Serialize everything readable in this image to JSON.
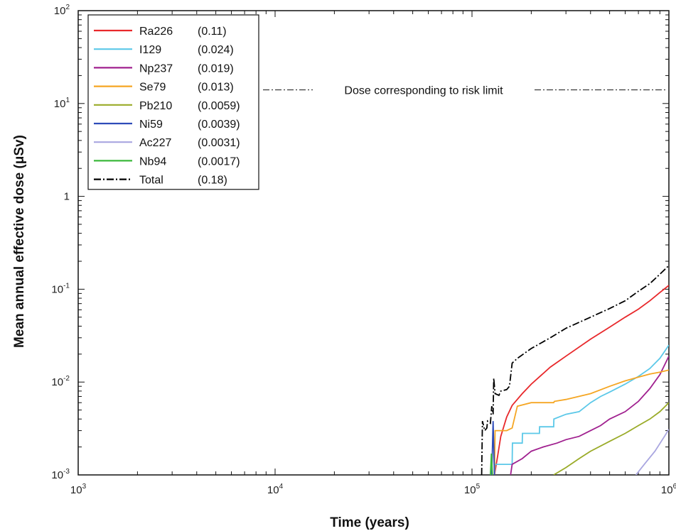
{
  "chart_data": {
    "type": "line",
    "xlabel": "Time (years)",
    "ylabel": "Mean annual effective dose (μSv)",
    "xscale": "log",
    "yscale": "log",
    "xlim": [
      1000,
      1000000
    ],
    "ylim": [
      0.001,
      100
    ],
    "x_ticks": [
      {
        "value": 1000,
        "base": "10",
        "exp": "3"
      },
      {
        "value": 10000,
        "base": "10",
        "exp": "4"
      },
      {
        "value": 100000,
        "base": "10",
        "exp": "5"
      },
      {
        "value": 1000000,
        "base": "10",
        "exp": "6"
      }
    ],
    "y_ticks": [
      {
        "value": 0.001,
        "base": "10",
        "exp": "-3"
      },
      {
        "value": 0.01,
        "base": "10",
        "exp": "-2"
      },
      {
        "value": 0.1,
        "base": "10",
        "exp": "-1"
      },
      {
        "value": 1,
        "base": "1",
        "exp": ""
      },
      {
        "value": 10,
        "base": "10",
        "exp": "1"
      },
      {
        "value": 100,
        "base": "10",
        "exp": "2"
      }
    ],
    "legend_position": "top-left",
    "grid": false,
    "reference_line": {
      "value": 14,
      "label": "Dose corresponding to risk limit"
    },
    "series": [
      {
        "name": "Ra226",
        "peak": "(0.11)",
        "color": "#e8282b",
        "dash": "",
        "points": [
          [
            130000,
            0.001
          ],
          [
            135000,
            0.0016
          ],
          [
            140000,
            0.0026
          ],
          [
            150000,
            0.0042
          ],
          [
            160000,
            0.0056
          ],
          [
            180000,
            0.0075
          ],
          [
            200000,
            0.0095
          ],
          [
            250000,
            0.0145
          ],
          [
            300000,
            0.019
          ],
          [
            400000,
            0.029
          ],
          [
            500000,
            0.039
          ],
          [
            600000,
            0.05
          ],
          [
            700000,
            0.061
          ],
          [
            800000,
            0.075
          ],
          [
            900000,
            0.092
          ],
          [
            1000000,
            0.11
          ]
        ]
      },
      {
        "name": "I129",
        "peak": "(0.024)",
        "color": "#5bc8e8",
        "dash": "",
        "points": [
          [
            130000,
            0.001
          ],
          [
            131000,
            0.0013
          ],
          [
            160000,
            0.0013
          ],
          [
            160500,
            0.0022
          ],
          [
            180000,
            0.0022
          ],
          [
            180500,
            0.0028
          ],
          [
            220000,
            0.0028
          ],
          [
            220500,
            0.0033
          ],
          [
            260000,
            0.0033
          ],
          [
            260500,
            0.004
          ],
          [
            300000,
            0.0045
          ],
          [
            350000,
            0.0048
          ],
          [
            400000,
            0.006
          ],
          [
            450000,
            0.007
          ],
          [
            500000,
            0.0078
          ],
          [
            600000,
            0.0095
          ],
          [
            700000,
            0.0115
          ],
          [
            800000,
            0.014
          ],
          [
            900000,
            0.018
          ],
          [
            1000000,
            0.025
          ]
        ]
      },
      {
        "name": "Np237",
        "peak": "(0.019)",
        "color": "#a0208f",
        "dash": "",
        "points": [
          [
            157000,
            0.001
          ],
          [
            160000,
            0.0013
          ],
          [
            180000,
            0.0015
          ],
          [
            200000,
            0.0018
          ],
          [
            230000,
            0.002
          ],
          [
            270000,
            0.0022
          ],
          [
            300000,
            0.0024
          ],
          [
            350000,
            0.0026
          ],
          [
            400000,
            0.003
          ],
          [
            450000,
            0.0034
          ],
          [
            500000,
            0.004
          ],
          [
            600000,
            0.0048
          ],
          [
            700000,
            0.0062
          ],
          [
            800000,
            0.0085
          ],
          [
            900000,
            0.012
          ],
          [
            1000000,
            0.019
          ]
        ]
      },
      {
        "name": "Se79",
        "peak": "(0.013)",
        "color": "#f5a623",
        "dash": "",
        "points": [
          [
            130000,
            0.001
          ],
          [
            131000,
            0.003
          ],
          [
            150000,
            0.003
          ],
          [
            160000,
            0.0032
          ],
          [
            170000,
            0.0055
          ],
          [
            200000,
            0.006
          ],
          [
            260000,
            0.006
          ],
          [
            262000,
            0.0062
          ],
          [
            300000,
            0.0065
          ],
          [
            400000,
            0.0075
          ],
          [
            500000,
            0.009
          ],
          [
            600000,
            0.0103
          ],
          [
            700000,
            0.0113
          ],
          [
            800000,
            0.0122
          ],
          [
            900000,
            0.0128
          ],
          [
            1000000,
            0.0135
          ]
        ]
      },
      {
        "name": "Pb210",
        "peak": "(0.0059)",
        "color": "#9aab28",
        "dash": "",
        "points": [
          [
            260000,
            0.001
          ],
          [
            300000,
            0.0012
          ],
          [
            350000,
            0.0015
          ],
          [
            400000,
            0.0018
          ],
          [
            500000,
            0.0023
          ],
          [
            600000,
            0.0028
          ],
          [
            700000,
            0.0034
          ],
          [
            800000,
            0.004
          ],
          [
            900000,
            0.0048
          ],
          [
            1000000,
            0.006
          ]
        ]
      },
      {
        "name": "Ni59",
        "peak": "(0.0039)",
        "color": "#2e4bb8",
        "dash": "",
        "points": [
          [
            126000,
            0.001
          ],
          [
            128000,
            0.0038
          ],
          [
            130000,
            0.001
          ]
        ]
      },
      {
        "name": "Ac227",
        "peak": "(0.0031)",
        "color": "#a9a6e0",
        "dash": "",
        "points": [
          [
            680000,
            0.001
          ],
          [
            750000,
            0.0013
          ],
          [
            850000,
            0.0018
          ],
          [
            950000,
            0.0026
          ],
          [
            1000000,
            0.0031
          ]
        ]
      },
      {
        "name": "Nb94",
        "peak": "(0.0017)",
        "color": "#3cb83c",
        "dash": "",
        "points": [
          [
            124000,
            0.001
          ],
          [
            125500,
            0.0017
          ],
          [
            127000,
            0.001
          ]
        ]
      },
      {
        "name": "Total",
        "peak": "(0.18)",
        "color": "#000000",
        "dash": "10,3,2,3",
        "points": [
          [
            112000,
            0.001
          ],
          [
            113000,
            0.0038
          ],
          [
            116000,
            0.003
          ],
          [
            119000,
            0.0032
          ],
          [
            120000,
            0.0038
          ],
          [
            124000,
            0.0036
          ],
          [
            126000,
            0.0055
          ],
          [
            128000,
            0.0045
          ],
          [
            129000,
            0.011
          ],
          [
            131000,
            0.0075
          ],
          [
            137000,
            0.0072
          ],
          [
            140000,
            0.008
          ],
          [
            150000,
            0.0083
          ],
          [
            155000,
            0.009
          ],
          [
            160000,
            0.016
          ],
          [
            170000,
            0.018
          ],
          [
            200000,
            0.023
          ],
          [
            250000,
            0.03
          ],
          [
            300000,
            0.038
          ],
          [
            400000,
            0.05
          ],
          [
            500000,
            0.062
          ],
          [
            600000,
            0.075
          ],
          [
            700000,
            0.095
          ],
          [
            800000,
            0.115
          ],
          [
            900000,
            0.145
          ],
          [
            1000000,
            0.18
          ]
        ]
      }
    ]
  }
}
